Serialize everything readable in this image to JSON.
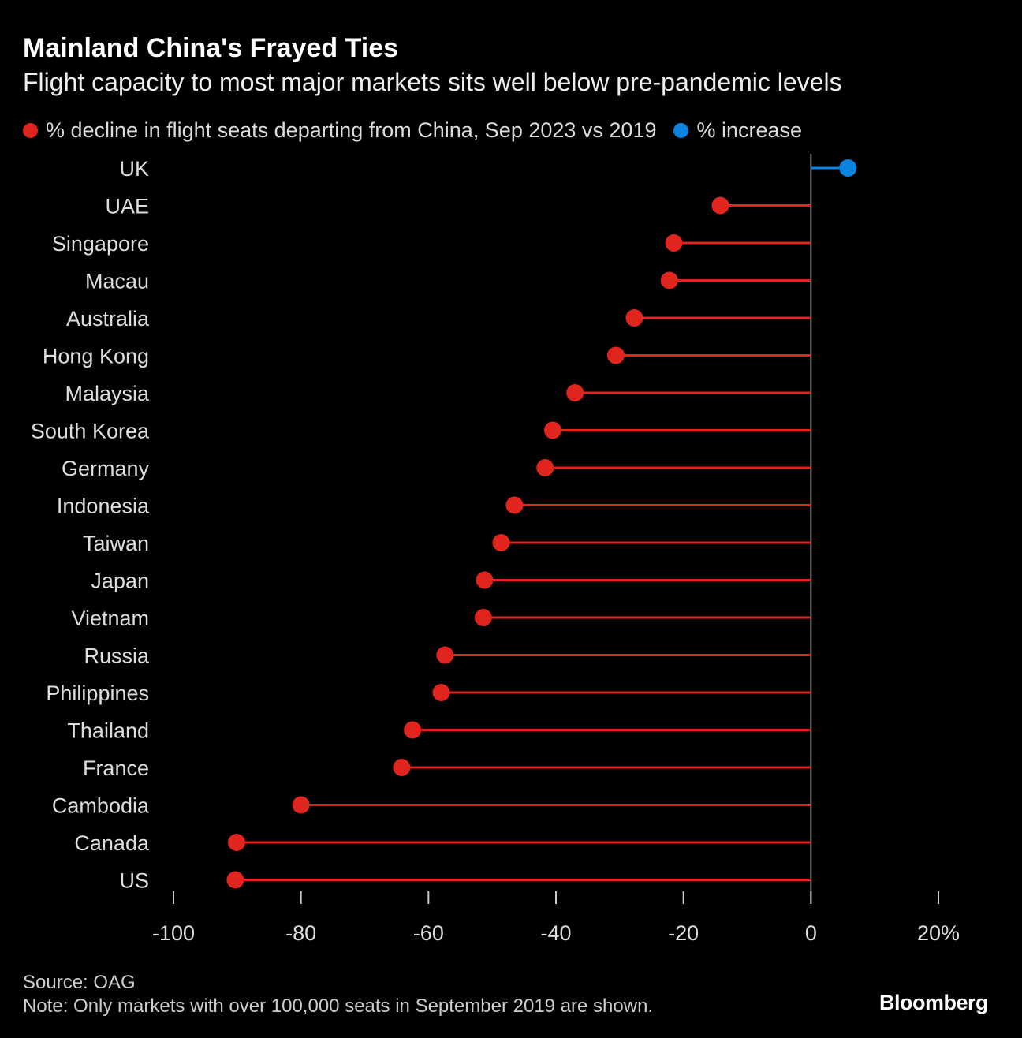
{
  "title": "Mainland China's Frayed Ties",
  "subtitle": "Flight capacity to most major markets sits well below pre-pandemic levels",
  "legend": [
    {
      "label": "% decline in flight seats departing from China, Sep 2023 vs 2019",
      "color": "#e0251f"
    },
    {
      "label": "% increase",
      "color": "#0a84e0"
    }
  ],
  "source": "Source: OAG",
  "note": "Note: Only markets with over 100,000 seats in September 2019 are shown.",
  "logo": "Bloomberg",
  "chart_data": {
    "type": "lollipop",
    "categories": [
      "UK",
      "UAE",
      "Singapore",
      "Macau",
      "Australia",
      "Hong Kong",
      "Malaysia",
      "South Korea",
      "Germany",
      "Indonesia",
      "Taiwan",
      "Japan",
      "Vietnam",
      "Russia",
      "Philippines",
      "Thailand",
      "France",
      "Cambodia",
      "Canada",
      "US"
    ],
    "values": [
      5.8,
      -14.2,
      -21.5,
      -22.2,
      -27.7,
      -30.6,
      -37,
      -40.5,
      -41.7,
      -46.5,
      -48.6,
      -51.2,
      -51.4,
      -57.4,
      -58,
      -62.5,
      -64.2,
      -80,
      -90.1,
      -90.3
    ],
    "xlim": [
      -100,
      20
    ],
    "xticks": [
      -100,
      -80,
      -60,
      -40,
      -20,
      0,
      20
    ],
    "xtick_labels": [
      "-100",
      "-80",
      "-60",
      "-40",
      "-20",
      "0",
      "20%"
    ],
    "colors": {
      "negative": "#e0251f",
      "positive": "#0a84e0"
    },
    "grid": false
  }
}
